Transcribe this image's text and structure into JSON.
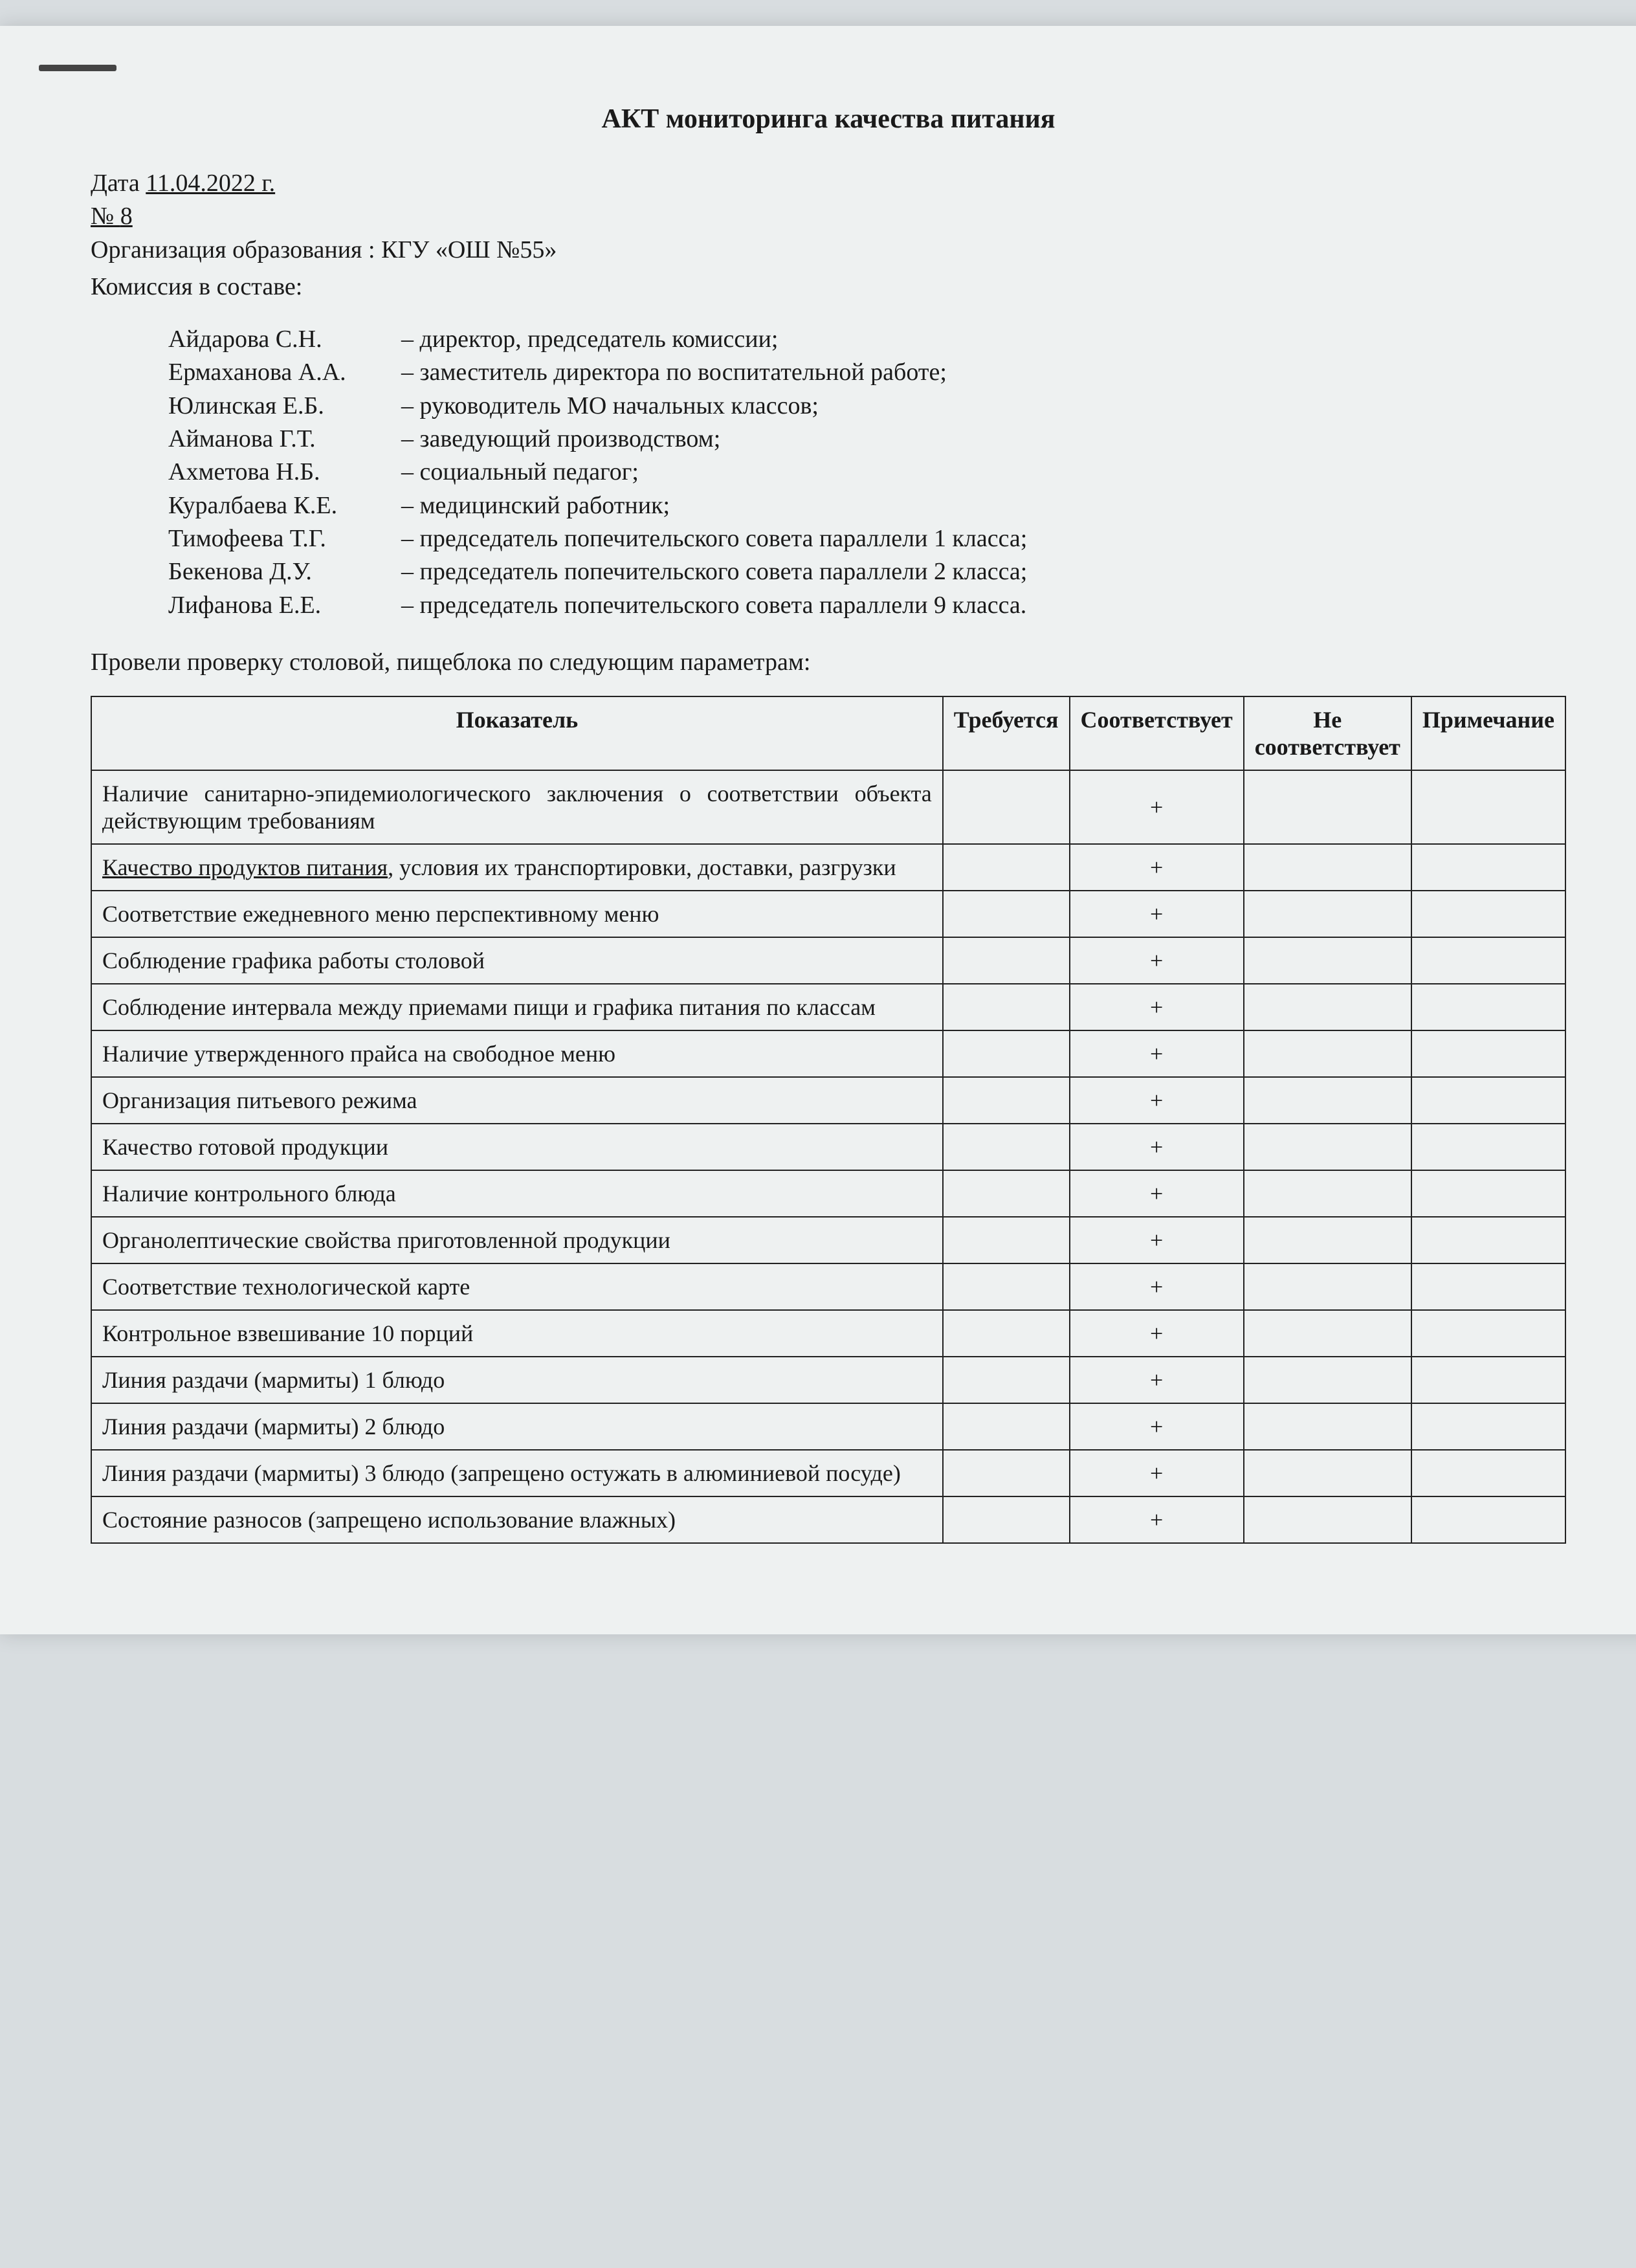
{
  "title": "АКТ мониторинга качества питания",
  "date_label": "Дата ",
  "date_value": "11.04.2022 г.",
  "number_label": "№ ",
  "number_value": "8",
  "org_label": "Организация образования : ",
  "org_value": "КГУ «ОШ №55»",
  "commission_label": "Комиссия в составе:",
  "members": [
    {
      "name": "Айдарова С.Н.",
      "role": "– директор, председатель комиссии;"
    },
    {
      "name": "Ермаханова А.А.",
      "role": "– заместитель директора по воспитательной работе;"
    },
    {
      "name": "Юлинская Е.Б.",
      "role": "– руководитель МО начальных классов;"
    },
    {
      "name": "Айманова Г.Т.",
      "role": "– заведующий производством;"
    },
    {
      "name": "Ахметова Н.Б.",
      "role": "–  социальный педагог;"
    },
    {
      "name": "Куралбаева К.Е.",
      "role": "– медицинский работник;"
    },
    {
      "name": "Тимофеева Т.Г.",
      "role": "– председатель попечительского совета параллели 1  класса;"
    },
    {
      "name": "Бекенова Д.У.",
      "role": "– председатель попечительского совета параллели 2  класса;"
    },
    {
      "name": "Лифанова Е.Е.",
      "role": "– председатель попечительского совета параллели 9 класса."
    }
  ],
  "intro": "Провели проверку столовой, пищеблока по следующим параметрам:",
  "table": {
    "headers": {
      "indicator": "Показатель",
      "required": "Требуется",
      "conforms": "Соответствует",
      "not_conforms": "Не соответствует",
      "note": "Примечание"
    },
    "rows": [
      {
        "indicator_pre": "Наличие санитарно-эпидемиологического заключения о соответствии объекта действующим требованиям",
        "indicator_u": "",
        "indicator_post": "",
        "required": "",
        "conforms": "+",
        "not_conforms": "",
        "note": ""
      },
      {
        "indicator_pre": "",
        "indicator_u": "Качество продуктов питания",
        "indicator_post": ", условия их транспортировки, доставки, разгрузки",
        "required": "",
        "conforms": "+",
        "not_conforms": "",
        "note": ""
      },
      {
        "indicator_pre": "Соответствие ежедневного меню перспективному меню",
        "indicator_u": "",
        "indicator_post": "",
        "required": "",
        "conforms": "+",
        "not_conforms": "",
        "note": ""
      },
      {
        "indicator_pre": "Соблюдение графика работы столовой",
        "indicator_u": "",
        "indicator_post": "",
        "required": "",
        "conforms": "+",
        "not_conforms": "",
        "note": ""
      },
      {
        "indicator_pre": "Соблюдение интервала между приемами пищи и графика питания по классам",
        "indicator_u": "",
        "indicator_post": "",
        "required": "",
        "conforms": "+",
        "not_conforms": "",
        "note": ""
      },
      {
        "indicator_pre": "Наличие утвержденного прайса на свободное меню",
        "indicator_u": "",
        "indicator_post": "",
        "required": "",
        "conforms": "+",
        "not_conforms": "",
        "note": ""
      },
      {
        "indicator_pre": "Организация питьевого режима",
        "indicator_u": "",
        "indicator_post": "",
        "required": "",
        "conforms": "+",
        "not_conforms": "",
        "note": ""
      },
      {
        "indicator_pre": "Качество готовой продукции",
        "indicator_u": "",
        "indicator_post": "",
        "required": "",
        "conforms": "+",
        "not_conforms": "",
        "note": ""
      },
      {
        "indicator_pre": "Наличие контрольного блюда",
        "indicator_u": "",
        "indicator_post": "",
        "required": "",
        "conforms": "+",
        "not_conforms": "",
        "note": ""
      },
      {
        "indicator_pre": "Органолептические свойства приготовленной продукции",
        "indicator_u": "",
        "indicator_post": "",
        "required": "",
        "conforms": "+",
        "not_conforms": "",
        "note": ""
      },
      {
        "indicator_pre": "Соответствие технологической карте",
        "indicator_u": "",
        "indicator_post": "",
        "required": "",
        "conforms": "+",
        "not_conforms": "",
        "note": ""
      },
      {
        "indicator_pre": "Контрольное взвешивание 10 порций",
        "indicator_u": "",
        "indicator_post": "",
        "required": "",
        "conforms": "+",
        "not_conforms": "",
        "note": ""
      },
      {
        "indicator_pre": "Линия раздачи (мармиты) 1 блюдо",
        "indicator_u": "",
        "indicator_post": "",
        "required": "",
        "conforms": "+",
        "not_conforms": "",
        "note": ""
      },
      {
        "indicator_pre": "Линия раздачи (мармиты)  2 блюдо",
        "indicator_u": "",
        "indicator_post": "",
        "required": "",
        "conforms": "+",
        "not_conforms": "",
        "note": ""
      },
      {
        "indicator_pre": "Линия раздачи (мармиты) 3 блюдо (запрещено остужать в алюминиевой посуде)",
        "indicator_u": "",
        "indicator_post": "",
        "required": "",
        "conforms": "+",
        "not_conforms": "",
        "note": ""
      },
      {
        "indicator_pre": "Состояние разносов (запрещено использование влажных)",
        "indicator_u": "",
        "indicator_post": "",
        "required": "",
        "conforms": "+",
        "not_conforms": "",
        "note": ""
      }
    ]
  }
}
